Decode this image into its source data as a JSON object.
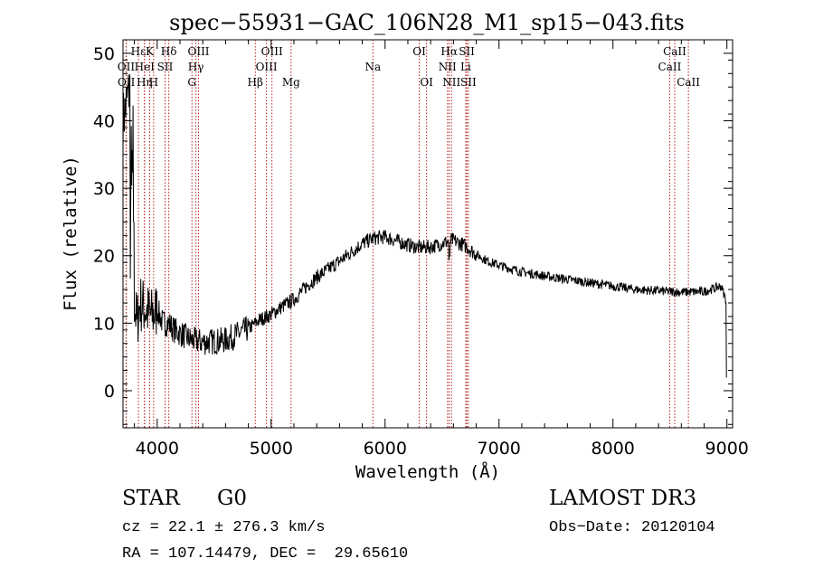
{
  "chart_data": {
    "type": "line",
    "title": "spec−55931−GAC_106N28_M1_sp15−043.fits",
    "xlabel": "Wavelength (Å)",
    "ylabel": "Flux (relative)",
    "xlim": [
      3700,
      9050
    ],
    "ylim": [
      -5.5,
      52
    ],
    "x_ticks": [
      4000,
      5000,
      6000,
      7000,
      8000,
      9000
    ],
    "y_ticks": [
      0,
      10,
      20,
      30,
      40,
      50
    ],
    "spectrum_anchors": [
      [
        3700,
        40
      ],
      [
        3760,
        45
      ],
      [
        3790,
        15
      ],
      [
        3820,
        10
      ],
      [
        3850,
        13
      ],
      [
        3900,
        12
      ],
      [
        3950,
        11
      ],
      [
        4000,
        12
      ],
      [
        4050,
        10
      ],
      [
        4100,
        10
      ],
      [
        4150,
        9
      ],
      [
        4200,
        8.5
      ],
      [
        4300,
        7.5
      ],
      [
        4400,
        7.2
      ],
      [
        4500,
        7.3
      ],
      [
        4600,
        7.5
      ],
      [
        4700,
        8.3
      ],
      [
        4800,
        9.2
      ],
      [
        4900,
        10.5
      ],
      [
        5000,
        11.3
      ],
      [
        5100,
        12.5
      ],
      [
        5200,
        13.5
      ],
      [
        5300,
        15.3
      ],
      [
        5400,
        16.8
      ],
      [
        5500,
        18
      ],
      [
        5600,
        19.2
      ],
      [
        5700,
        20.5
      ],
      [
        5800,
        21.8
      ],
      [
        5900,
        22.6
      ],
      [
        6000,
        22.8
      ],
      [
        6100,
        22.2
      ],
      [
        6200,
        21.6
      ],
      [
        6300,
        21.2
      ],
      [
        6400,
        21.3
      ],
      [
        6500,
        21.8
      ],
      [
        6560,
        22.2
      ],
      [
        6600,
        22.3
      ],
      [
        6700,
        21.5
      ],
      [
        6800,
        20.2
      ],
      [
        6900,
        19.2
      ],
      [
        7000,
        18.6
      ],
      [
        7200,
        17.6
      ],
      [
        7400,
        17
      ],
      [
        7600,
        16.5
      ],
      [
        7800,
        16
      ],
      [
        8000,
        15.5
      ],
      [
        8200,
        15
      ],
      [
        8400,
        14.8
      ],
      [
        8600,
        14.6
      ],
      [
        8800,
        14.7
      ],
      [
        8950,
        15.5
      ],
      [
        9000,
        13
      ]
    ],
    "spectral_lines": [
      {
        "label": "Hε",
        "x": 3835,
        "row": 0
      },
      {
        "label": "OII",
        "x": 3727,
        "row": 1
      },
      {
        "label": "OII",
        "x": 3729,
        "row": 2
      },
      {
        "label": "K",
        "x": 3934,
        "row": 0
      },
      {
        "label": "HeI",
        "x": 3889,
        "row": 1
      },
      {
        "label": "Hη",
        "x": 3889,
        "row": 2
      },
      {
        "label": "SII",
        "x": 4069,
        "row": 1
      },
      {
        "label": "H",
        "x": 3969,
        "row": 2
      },
      {
        "label": "Hδ",
        "x": 4102,
        "row": 0
      },
      {
        "label": "OIII",
        "x": 4363,
        "row": 0
      },
      {
        "label": "Hγ",
        "x": 4340,
        "row": 1
      },
      {
        "label": "G",
        "x": 4305,
        "row": 2
      },
      {
        "label": "Hβ",
        "x": 4861,
        "row": 2
      },
      {
        "label": "OIII",
        "x": 5007,
        "row": 0
      },
      {
        "label": "OIII",
        "x": 4959,
        "row": 1
      },
      {
        "label": "Mg",
        "x": 5175,
        "row": 2
      },
      {
        "label": "Na",
        "x": 5893,
        "row": 1
      },
      {
        "label": "OI",
        "x": 6300,
        "row": 0
      },
      {
        "label": "OI",
        "x": 6364,
        "row": 2
      },
      {
        "label": "Hα",
        "x": 6563,
        "row": 0
      },
      {
        "label": "SII",
        "x": 6717,
        "row": 0
      },
      {
        "label": "NII",
        "x": 6548,
        "row": 1
      },
      {
        "label": "Li",
        "x": 6708,
        "row": 1
      },
      {
        "label": "NII",
        "x": 6583,
        "row": 2
      },
      {
        "label": "SII",
        "x": 6731,
        "row": 2
      },
      {
        "label": "CaII",
        "x": 8542,
        "row": 0
      },
      {
        "label": "CaII",
        "x": 8498,
        "row": 1
      },
      {
        "label": "CaII",
        "x": 8662,
        "row": 2
      }
    ]
  },
  "info": {
    "object_class": "STAR",
    "subclass": "G0",
    "survey": "LAMOST DR3",
    "cz_line": "cz = 22.1 ± 276.3 km/s",
    "obs_date_line": "Obs−Date: 20120104",
    "radec_line": "RA = 107.14479, DEC =  29.65610"
  },
  "colors": {
    "spectral_line": "#b22222",
    "spectrum": "#000000",
    "axes": "#000000"
  }
}
